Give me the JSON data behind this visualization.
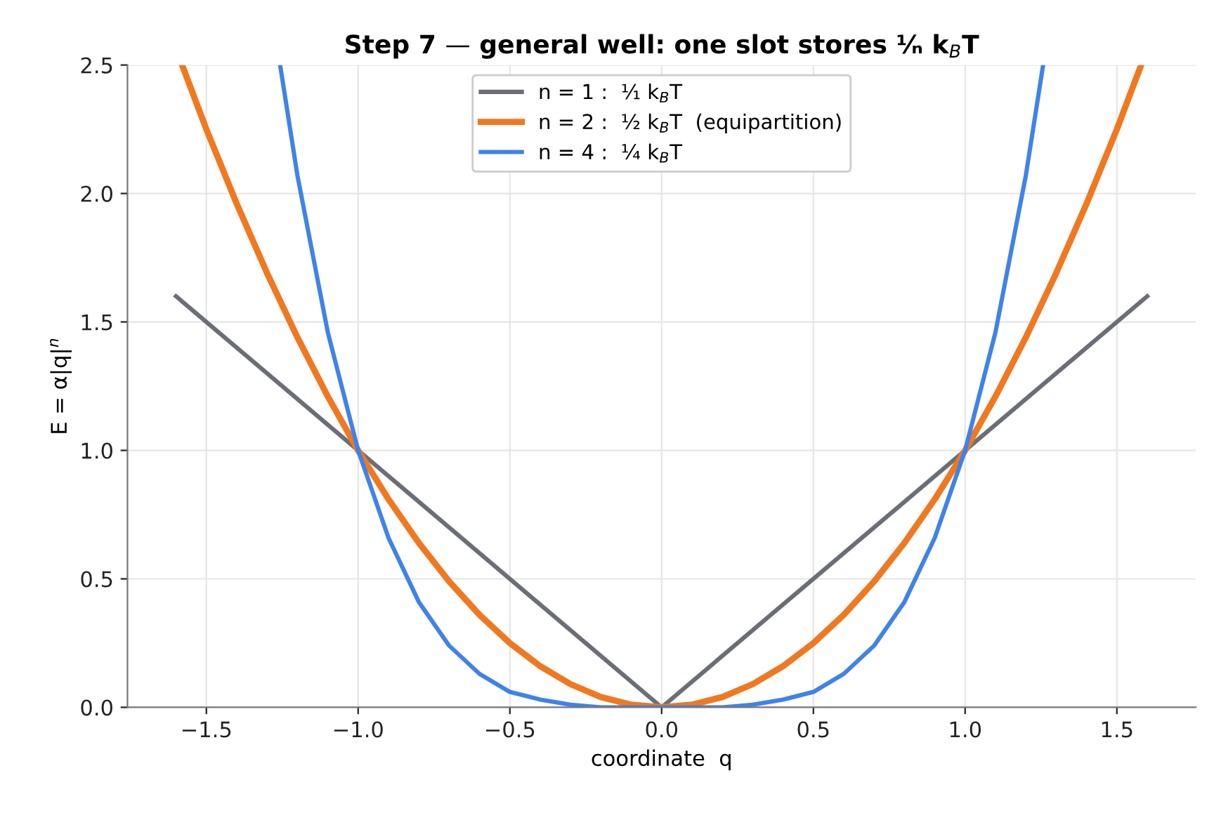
{
  "chart_data": {
    "type": "line",
    "title": "Step 7 — general well: one slot stores ¹⁄ₙ k$_{B}$T",
    "xlabel": "coordinate  q",
    "ylabel": "E = α|q|$^{n}$",
    "series": [
      {
        "name": "n = 1 :  ¹⁄₁ k$_{B}$T",
        "color": "#6b6e75",
        "x": [
          -1.6,
          0,
          1.6
        ],
        "values": [
          1.6,
          0,
          1.6
        ]
      },
      {
        "name": "n = 2 :  ¹⁄₂ k$_{B}$T  (equipartition)",
        "color": "#f07820",
        "x": [
          -1.58,
          -1.5,
          -1.4,
          -1.3,
          -1.2,
          -1.1,
          -1.0,
          -0.9,
          -0.8,
          -0.7,
          -0.6,
          -0.5,
          -0.4,
          -0.3,
          -0.2,
          -0.1,
          0,
          0.1,
          0.2,
          0.3,
          0.4,
          0.5,
          0.6,
          0.7,
          0.8,
          0.9,
          1.0,
          1.1,
          1.2,
          1.3,
          1.4,
          1.5,
          1.58
        ],
        "values": [
          2.5,
          2.25,
          1.96,
          1.69,
          1.44,
          1.21,
          1.0,
          0.81,
          0.64,
          0.49,
          0.36,
          0.25,
          0.16,
          0.09,
          0.04,
          0.01,
          0,
          0.01,
          0.04,
          0.09,
          0.16,
          0.25,
          0.36,
          0.49,
          0.64,
          0.81,
          1.0,
          1.21,
          1.44,
          1.69,
          1.96,
          2.25,
          2.5
        ]
      },
      {
        "name": "n = 4 :  ¹⁄₄ k$_{B}$T",
        "color": "#3f83e8",
        "x": [
          -1.257,
          -1.2,
          -1.1,
          -1.0,
          -0.9,
          -0.8,
          -0.7,
          -0.6,
          -0.5,
          -0.4,
          -0.3,
          -0.2,
          0,
          0.2,
          0.3,
          0.4,
          0.5,
          0.6,
          0.7,
          0.8,
          0.9,
          1.0,
          1.1,
          1.2,
          1.257
        ],
        "values": [
          2.5,
          2.07,
          1.46,
          1.0,
          0.66,
          0.41,
          0.24,
          0.13,
          0.06,
          0.03,
          0.01,
          0.0,
          0,
          0.0,
          0.01,
          0.03,
          0.06,
          0.13,
          0.24,
          0.41,
          0.66,
          1.0,
          1.46,
          2.07,
          2.5
        ]
      }
    ],
    "xlim": [
      -1.76,
      1.76
    ],
    "xticks": [
      {
        "value": -1.5,
        "label": "−1.5"
      },
      {
        "value": -1.0,
        "label": "−1.0"
      },
      {
        "value": -0.5,
        "label": "−0.5"
      },
      {
        "value": 0,
        "label": "0.0"
      },
      {
        "value": 0.5,
        "label": "0.5"
      },
      {
        "value": 1.0,
        "label": "1.0"
      },
      {
        "value": 1.5,
        "label": "1.5"
      }
    ],
    "ylim": [
      0,
      2.5
    ],
    "yticks": [
      {
        "value": 0,
        "label": "0.0"
      },
      {
        "value": 0.5,
        "label": "0.5"
      },
      {
        "value": 1.0,
        "label": "1.0"
      },
      {
        "value": 1.5,
        "label": "1.5"
      },
      {
        "value": 2.0,
        "label": "2.0"
      },
      {
        "value": 2.5,
        "label": "2.5"
      }
    ],
    "grid": true,
    "legend": "top center",
    "line_style": "solid",
    "marker": "none"
  }
}
